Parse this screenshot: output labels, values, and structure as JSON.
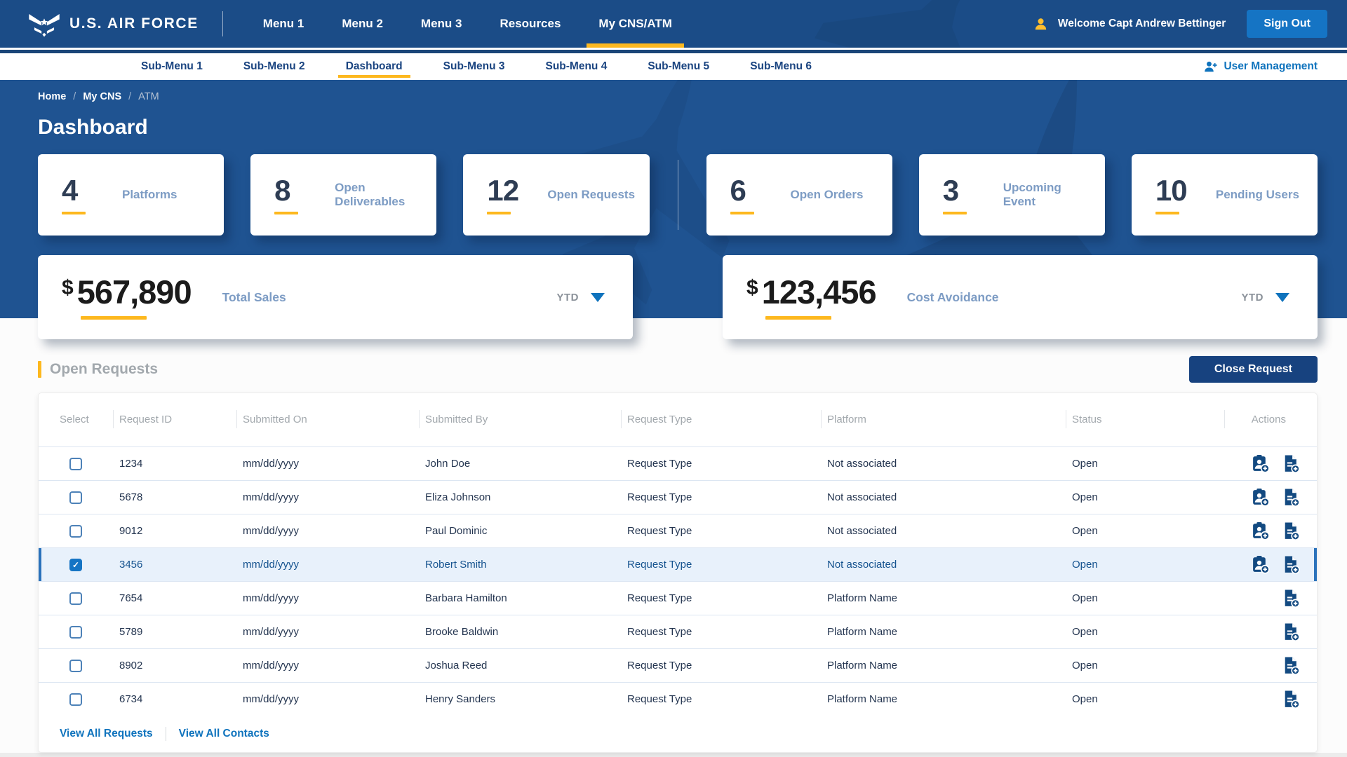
{
  "brand": {
    "name": "U.S. AIR FORCE"
  },
  "topnav": {
    "items": [
      {
        "label": "Menu 1",
        "active": false
      },
      {
        "label": "Menu 2",
        "active": false
      },
      {
        "label": "Menu 3",
        "active": false
      },
      {
        "label": "Resources",
        "active": false
      },
      {
        "label": "My CNS/ATM",
        "active": true
      }
    ],
    "welcome_text": "Welcome Capt Andrew Bettinger",
    "sign_out_label": "Sign Out"
  },
  "subnav": {
    "items": [
      {
        "label": "Sub-Menu 1",
        "active": false
      },
      {
        "label": "Sub-Menu 2",
        "active": false
      },
      {
        "label": "Dashboard",
        "active": true
      },
      {
        "label": "Sub-Menu 3",
        "active": false
      },
      {
        "label": "Sub-Menu 4",
        "active": false
      },
      {
        "label": "Sub-Menu 5",
        "active": false
      },
      {
        "label": "Sub-Menu 6",
        "active": false
      }
    ],
    "user_management_label": "User Management"
  },
  "breadcrumb": {
    "separator": "/",
    "items": [
      {
        "label": "Home",
        "muted": false
      },
      {
        "label": "My CNS",
        "muted": false
      },
      {
        "label": "ATM",
        "muted": true
      }
    ]
  },
  "page": {
    "title": "Dashboard"
  },
  "stat_cards": [
    {
      "value": "4",
      "label": "Platforms"
    },
    {
      "value": "8",
      "label": "Open Deliverables"
    },
    {
      "value": "12",
      "label": "Open Requests"
    },
    {
      "value": "6",
      "label": "Open Orders"
    },
    {
      "value": "3",
      "label": "Upcoming Event"
    },
    {
      "value": "10",
      "label": "Pending Users"
    }
  ],
  "kpi_cards": [
    {
      "currency": "$",
      "value": "567,890",
      "label": "Total Sales",
      "period": "YTD"
    },
    {
      "currency": "$",
      "value": "123,456",
      "label": "Cost Avoidance",
      "period": "YTD"
    }
  ],
  "open_requests": {
    "section_title": "Open Requests",
    "close_button_label": "Close Request",
    "columns": [
      "Select",
      "Request ID",
      "Submitted On",
      "Submitted By",
      "Request Type",
      "Platform",
      "Status",
      "Actions"
    ],
    "rows": [
      {
        "request_id": "1234",
        "submitted_on": "mm/dd/yyyy",
        "submitted_by": "John Doe",
        "request_type": "Request Type",
        "platform": "Not associated",
        "status": "Open",
        "selected": false,
        "actions": [
          "assign-user",
          "add-document"
        ]
      },
      {
        "request_id": "5678",
        "submitted_on": "mm/dd/yyyy",
        "submitted_by": "Eliza Johnson",
        "request_type": "Request Type",
        "platform": "Not associated",
        "status": "Open",
        "selected": false,
        "actions": [
          "assign-user",
          "add-document"
        ]
      },
      {
        "request_id": "9012",
        "submitted_on": "mm/dd/yyyy",
        "submitted_by": "Paul Dominic",
        "request_type": "Request Type",
        "platform": "Not associated",
        "status": "Open",
        "selected": false,
        "actions": [
          "assign-user",
          "add-document"
        ]
      },
      {
        "request_id": "3456",
        "submitted_on": "mm/dd/yyyy",
        "submitted_by": "Robert Smith",
        "request_type": "Request Type",
        "platform": "Not associated",
        "status": "Open",
        "selected": true,
        "actions": [
          "assign-user",
          "add-document"
        ]
      },
      {
        "request_id": "7654",
        "submitted_on": "mm/dd/yyyy",
        "submitted_by": "Barbara Hamilton",
        "request_type": "Request Type",
        "platform": "Platform Name",
        "status": "Open",
        "selected": false,
        "actions": [
          "add-document"
        ]
      },
      {
        "request_id": "5789",
        "submitted_on": "mm/dd/yyyy",
        "submitted_by": "Brooke Baldwin",
        "request_type": "Request Type",
        "platform": "Platform Name",
        "status": "Open",
        "selected": false,
        "actions": [
          "add-document"
        ]
      },
      {
        "request_id": "8902",
        "submitted_on": "mm/dd/yyyy",
        "submitted_by": "Joshua Reed",
        "request_type": "Request Type",
        "platform": "Platform Name",
        "status": "Open",
        "selected": false,
        "actions": [
          "add-document"
        ]
      },
      {
        "request_id": "6734",
        "submitted_on": "mm/dd/yyyy",
        "submitted_by": "Henry Sanders",
        "request_type": "Request Type",
        "platform": "Platform Name",
        "status": "Open",
        "selected": false,
        "actions": [
          "add-document"
        ]
      }
    ],
    "footer_links": [
      "View All Requests",
      "View All Contacts"
    ]
  },
  "icons": {
    "logo": "air-force-wings-icon",
    "welcome": "person-icon",
    "user_management": "person-plus-icon",
    "period": "caret-down-icon",
    "assign-user": "assign-user-icon",
    "add-document": "add-document-icon",
    "checkbox_check": "checkmark"
  },
  "colors": {
    "nav_blue": "#1b4c87",
    "hero_blue": "#1f5391",
    "navy": "#1a4480",
    "gold": "#fdb81e",
    "bright_blue": "#1574c4",
    "link_blue": "#0f73bd",
    "muted_label_blue": "#7d9cc4",
    "header_gray": "#a2a8ad",
    "selected_row_bg": "#e8f1fb",
    "close_button_bg": "#17427f"
  }
}
